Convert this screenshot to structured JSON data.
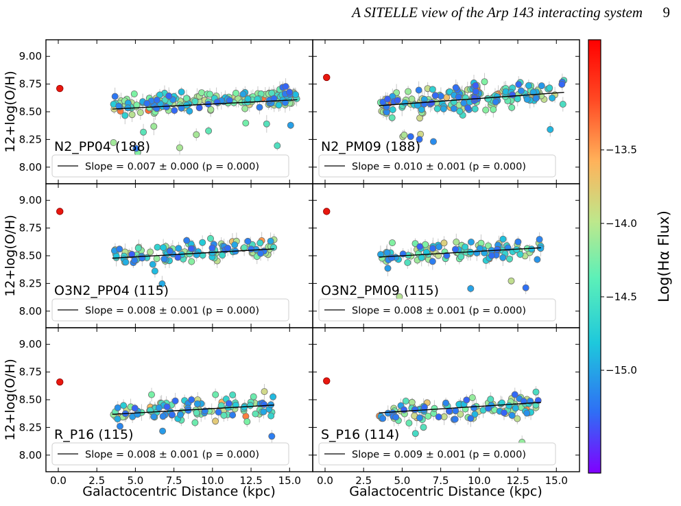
{
  "header": {
    "running_head": "A SITELLE view of the Arp 143 interacting system",
    "page_number": "9"
  },
  "colors": {
    "trend_line": "#000000",
    "marker_edge": "#6b6b6b",
    "errorbar": "#c8c8c8",
    "reference_point": "#e8170e",
    "colormap": [
      "#8000ff",
      "#2f6ef5",
      "#1ec8dc",
      "#7df2a4",
      "#d2d98a",
      "#ffb25a",
      "#ff4a24",
      "#ff0000"
    ]
  },
  "chart_data": {
    "type": "scatter",
    "layout": "3x2 panel grid, shared axes",
    "xlabel": "Galactocentric Distance (kpc)",
    "ylabel": "12+log(O/H)",
    "xlim": [
      -0.8,
      16.5
    ],
    "ylim": [
      7.85,
      9.15
    ],
    "xticks": [
      "0.0",
      "2.5",
      "5.0",
      "7.5",
      "10.0",
      "12.5",
      "15.0"
    ],
    "yticks": [
      "8.00",
      "8.25",
      "8.50",
      "8.75",
      "9.00"
    ],
    "colorbar": {
      "label": "Log(Hα Flux)",
      "range": [
        -15.7,
        -12.75
      ],
      "ticks": [
        "−13.5",
        "−14.0",
        "−14.5",
        "−15.0"
      ]
    },
    "panels": [
      {
        "calibration": "N2_PP04",
        "n": "(188)",
        "slope_text": "Slope = 0.007 ± 0.000 (p = 0.000)",
        "slope": 0.007,
        "intercept": 8.5,
        "fit_range": [
          3.5,
          15.5
        ],
        "reference": [
          0.1,
          8.71
        ],
        "n_points": 188,
        "center": 8.59,
        "scatter": 0.06,
        "seed": 11
      },
      {
        "calibration": "N2_PM09",
        "n": "(188)",
        "slope_text": "Slope = 0.010 ± 0.001 (p = 0.000)",
        "slope": 0.01,
        "intercept": 8.52,
        "fit_range": [
          3.5,
          15.5
        ],
        "reference": [
          0.1,
          8.81
        ],
        "n_points": 188,
        "center": 8.62,
        "scatter": 0.09,
        "seed": 23
      },
      {
        "calibration": "O3N2_PP04",
        "n": "(115)",
        "slope_text": "Slope = 0.008 ± 0.001 (p = 0.000)",
        "slope": 0.008,
        "intercept": 8.45,
        "fit_range": [
          3.5,
          14.0
        ],
        "reference": [
          0.1,
          8.9
        ],
        "n_points": 115,
        "center": 8.54,
        "scatter": 0.07,
        "seed": 37
      },
      {
        "calibration": "O3N2_PM09",
        "n": "(115)",
        "slope_text": "Slope = 0.008 ± 0.001 (p = 0.000)",
        "slope": 0.008,
        "intercept": 8.46,
        "fit_range": [
          3.5,
          14.0
        ],
        "reference": [
          0.1,
          8.9
        ],
        "n_points": 115,
        "center": 8.54,
        "scatter": 0.07,
        "seed": 41
      },
      {
        "calibration": "R_P16",
        "n": "(115)",
        "slope_text": "Slope = 0.008 ± 0.001 (p = 0.000)",
        "slope": 0.008,
        "intercept": 8.34,
        "fit_range": [
          3.5,
          14.0
        ],
        "reference": [
          0.1,
          8.66
        ],
        "n_points": 115,
        "center": 8.42,
        "scatter": 0.09,
        "seed": 53
      },
      {
        "calibration": "S_P16",
        "n": "(114)",
        "slope_text": "Slope = 0.009 ± 0.001 (p = 0.000)",
        "slope": 0.009,
        "intercept": 8.35,
        "fit_range": [
          3.5,
          14.0
        ],
        "reference": [
          0.1,
          8.67
        ],
        "n_points": 114,
        "center": 8.42,
        "scatter": 0.07,
        "seed": 67
      }
    ]
  }
}
